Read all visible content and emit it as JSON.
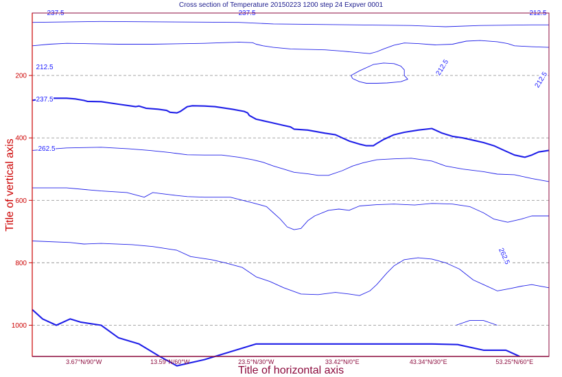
{
  "chart_data": {
    "type": "contour",
    "title": "Cross section of Temperature 20150223 1200 step 24 Expver 0001",
    "xlabel": "Title of horizontal axis",
    "ylabel": "Title of vertical axis",
    "xticks": [
      "3.67°N/90°W",
      "13.59°N/60°W",
      "23.5°N/30°W",
      "33.42°N/0°E",
      "43.34°N/30°E",
      "53.25°N/60°E"
    ],
    "yticks": [
      200,
      400,
      600,
      800,
      1000
    ],
    "yrange": [
      0,
      1100
    ],
    "y_inverted": true,
    "grid": true,
    "line_color": "#1f1fe8",
    "grid_color": "#999999",
    "contours": [
      {
        "level": "237.5",
        "bold": true,
        "label_xy": [
          [
            8,
            0
          ],
          [
            80,
            0
          ]
        ],
        "points": [
          [
            0,
            950
          ],
          [
            6,
            980
          ],
          [
            14,
            1000
          ],
          [
            22,
            980
          ],
          [
            28,
            990
          ],
          [
            40,
            1000
          ],
          [
            50,
            1040
          ],
          [
            62,
            1060
          ],
          [
            74,
            1100
          ],
          [
            84,
            1130
          ],
          [
            100,
            1110
          ],
          [
            130,
            1060
          ],
          [
            160,
            1060
          ],
          [
            185,
            1060
          ],
          [
            232,
            1060
          ],
          [
            247,
            1062
          ],
          [
            262,
            1080
          ],
          [
            275,
            1080
          ],
          [
            283,
            1100
          ]
        ]
      },
      {
        "level": "237.5",
        "bold": true,
        "points": [
          [
            0,
            280
          ],
          [
            5,
            275
          ],
          [
            10,
            273
          ],
          [
            20,
            273
          ],
          [
            25,
            275
          ],
          [
            28,
            278
          ],
          [
            30,
            280
          ],
          [
            32,
            283
          ],
          [
            40,
            284
          ],
          [
            50,
            292
          ],
          [
            60,
            300
          ],
          [
            62,
            298
          ],
          [
            66,
            305
          ],
          [
            73,
            308
          ],
          [
            78,
            312
          ],
          [
            80,
            318
          ],
          [
            84,
            320
          ],
          [
            86,
            315
          ],
          [
            90,
            300
          ],
          [
            93,
            297
          ],
          [
            100,
            298
          ],
          [
            106,
            300
          ],
          [
            116,
            308
          ],
          [
            123,
            315
          ],
          [
            125,
            320
          ],
          [
            126,
            328
          ],
          [
            130,
            340
          ],
          [
            138,
            350
          ],
          [
            146,
            360
          ],
          [
            150,
            365
          ],
          [
            152,
            372
          ],
          [
            160,
            375
          ],
          [
            170,
            385
          ],
          [
            176,
            390
          ],
          [
            180,
            400
          ],
          [
            184,
            410
          ],
          [
            190,
            420
          ],
          [
            194,
            425
          ],
          [
            198,
            425
          ],
          [
            200,
            418
          ],
          [
            204,
            405
          ],
          [
            210,
            390
          ],
          [
            216,
            382
          ],
          [
            224,
            375
          ],
          [
            232,
            370
          ],
          [
            238,
            385
          ],
          [
            244,
            395
          ],
          [
            250,
            400
          ],
          [
            258,
            410
          ],
          [
            262,
            415
          ],
          [
            268,
            425
          ],
          [
            274,
            440
          ],
          [
            280,
            455
          ],
          [
            286,
            462
          ],
          [
            290,
            455
          ],
          [
            294,
            445
          ],
          [
            300,
            440
          ]
        ]
      },
      {
        "level": "212.5",
        "points": [
          [
            0,
            30
          ],
          [
            40,
            27
          ],
          [
            120,
            30
          ],
          [
            140,
            35
          ],
          [
            220,
            40
          ],
          [
            240,
            44
          ],
          [
            260,
            40
          ],
          [
            290,
            38
          ],
          [
            300,
            38
          ]
        ]
      },
      {
        "level": "212.5",
        "points": [
          [
            0,
            105
          ],
          [
            10,
            100
          ],
          [
            20,
            97
          ],
          [
            30,
            98
          ],
          [
            50,
            100
          ],
          [
            70,
            100
          ],
          [
            100,
            97
          ],
          [
            120,
            93
          ],
          [
            128,
            95
          ],
          [
            130,
            100
          ],
          [
            134,
            105
          ],
          [
            140,
            110
          ],
          [
            150,
            115
          ],
          [
            170,
            118
          ],
          [
            180,
            122
          ],
          [
            196,
            130
          ],
          [
            200,
            124
          ],
          [
            204,
            115
          ],
          [
            210,
            103
          ],
          [
            216,
            96
          ],
          [
            224,
            98
          ],
          [
            234,
            102
          ],
          [
            244,
            100
          ],
          [
            252,
            90
          ],
          [
            260,
            88
          ],
          [
            270,
            92
          ],
          [
            276,
            98
          ],
          [
            280,
            105
          ],
          [
            290,
            108
          ],
          [
            300,
            110
          ]
        ]
      },
      {
        "level": "212.5",
        "points": [
          [
            185,
            200
          ],
          [
            190,
            185
          ],
          [
            198,
            165
          ],
          [
            204,
            160
          ],
          [
            210,
            162
          ],
          [
            214,
            170
          ],
          [
            216,
            182
          ],
          [
            216,
            200
          ],
          [
            218,
            212
          ],
          [
            214,
            220
          ],
          [
            206,
            224
          ],
          [
            200,
            225
          ],
          [
            194,
            225
          ],
          [
            190,
            220
          ],
          [
            186,
            210
          ],
          [
            185,
            200
          ]
        ]
      },
      {
        "level": "262.5",
        "points": [
          [
            0,
            440
          ],
          [
            20,
            432
          ],
          [
            40,
            430
          ],
          [
            56,
            435
          ],
          [
            68,
            440
          ],
          [
            80,
            447
          ],
          [
            90,
            454
          ],
          [
            100,
            455
          ],
          [
            110,
            455
          ],
          [
            120,
            462
          ],
          [
            128,
            470
          ],
          [
            134,
            478
          ],
          [
            140,
            490
          ],
          [
            146,
            500
          ],
          [
            152,
            510
          ],
          [
            160,
            515
          ],
          [
            166,
            520
          ],
          [
            172,
            520
          ],
          [
            180,
            505
          ],
          [
            186,
            490
          ],
          [
            192,
            480
          ],
          [
            200,
            470
          ],
          [
            210,
            467
          ],
          [
            220,
            465
          ],
          [
            232,
            474
          ],
          [
            240,
            490
          ],
          [
            250,
            500
          ],
          [
            262,
            508
          ],
          [
            270,
            516
          ],
          [
            280,
            518
          ],
          [
            290,
            530
          ],
          [
            300,
            540
          ]
        ]
      },
      {
        "level": "262.5",
        "points": [
          [
            0,
            560
          ],
          [
            20,
            560
          ],
          [
            40,
            570
          ],
          [
            55,
            575
          ],
          [
            65,
            590
          ],
          [
            70,
            575
          ],
          [
            80,
            582
          ],
          [
            90,
            588
          ],
          [
            100,
            590
          ],
          [
            115,
            590
          ],
          [
            128,
            608
          ],
          [
            136,
            620
          ],
          [
            140,
            640
          ],
          [
            144,
            660
          ],
          [
            148,
            685
          ],
          [
            152,
            694
          ],
          [
            156,
            690
          ],
          [
            160,
            665
          ],
          [
            164,
            650
          ],
          [
            172,
            632
          ],
          [
            178,
            628
          ],
          [
            184,
            632
          ],
          [
            190,
            618
          ],
          [
            200,
            614
          ],
          [
            210,
            612
          ],
          [
            222,
            615
          ],
          [
            232,
            610
          ],
          [
            244,
            612
          ],
          [
            254,
            620
          ],
          [
            262,
            640
          ],
          [
            268,
            660
          ],
          [
            276,
            670
          ],
          [
            284,
            660
          ],
          [
            290,
            650
          ],
          [
            300,
            650
          ]
        ]
      },
      {
        "level": "262.5",
        "points": [
          [
            0,
            730
          ],
          [
            22,
            735
          ],
          [
            30,
            740
          ],
          [
            40,
            738
          ],
          [
            58,
            742
          ],
          [
            70,
            748
          ],
          [
            84,
            760
          ],
          [
            92,
            780
          ],
          [
            104,
            790
          ],
          [
            112,
            800
          ],
          [
            122,
            815
          ],
          [
            130,
            845
          ],
          [
            138,
            860
          ],
          [
            146,
            880
          ],
          [
            156,
            900
          ],
          [
            166,
            902
          ],
          [
            176,
            895
          ],
          [
            184,
            900
          ],
          [
            190,
            905
          ],
          [
            196,
            890
          ],
          [
            200,
            870
          ],
          [
            206,
            832
          ],
          [
            210,
            810
          ],
          [
            216,
            790
          ],
          [
            224,
            784
          ],
          [
            232,
            788
          ],
          [
            240,
            800
          ],
          [
            248,
            820
          ],
          [
            256,
            855
          ],
          [
            262,
            870
          ],
          [
            270,
            890
          ],
          [
            278,
            882
          ],
          [
            284,
            875
          ],
          [
            290,
            870
          ],
          [
            300,
            880
          ]
        ]
      },
      {
        "level": "262.5",
        "points": [
          [
            246,
            1000
          ],
          [
            254,
            985
          ],
          [
            262,
            985
          ],
          [
            270,
            1000
          ]
        ]
      }
    ],
    "contour_labels": [
      "237.5",
      "237.5",
      "212.5",
      "212.5",
      "212.5",
      "212.5",
      "237.5",
      "262.5",
      "262.5"
    ]
  }
}
